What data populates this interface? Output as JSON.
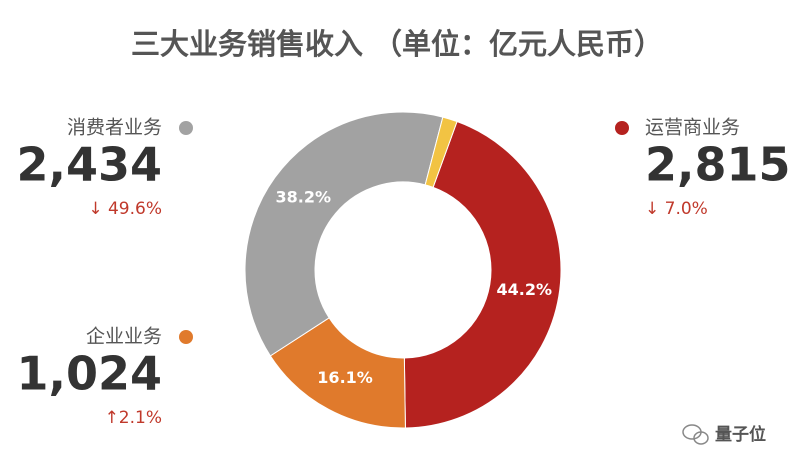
{
  "chart_data": {
    "type": "pie",
    "donut": true,
    "title": "三大业务销售收入 （单位：亿元人民币）",
    "categories": [
      "运营商业务",
      "企业业务",
      "消费者业务",
      null
    ],
    "values": [
      44.2,
      16.1,
      38.2,
      1.5
    ],
    "value_labels": [
      "44.2%",
      "16.1%",
      "38.2%",
      null
    ],
    "colors": [
      "#b5221f",
      "#e07a2c",
      "#a2a2a2",
      "#f2c343"
    ],
    "revenue": [
      2815,
      1024,
      2434,
      null
    ],
    "revenue_labels": [
      "2,815",
      "1,024",
      "2,434",
      null
    ],
    "change_labels": [
      "↓ 7.0%",
      "↑2.1%",
      "↓ 49.6%",
      null
    ]
  },
  "watermark": "量子位"
}
